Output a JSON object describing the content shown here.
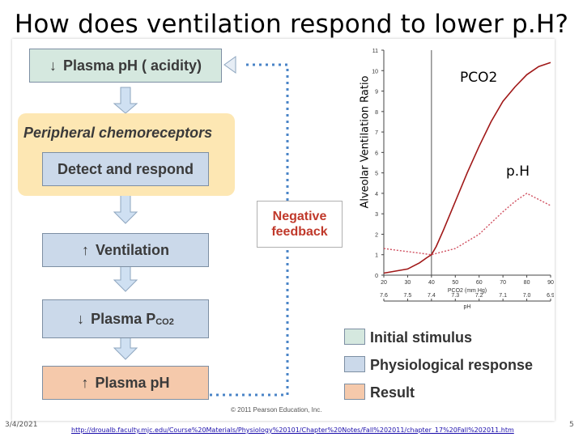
{
  "title": "How does ventilation respond to lower p.H?",
  "flow": {
    "stimulus": "Plasma pH ( acidity)",
    "chemoreceptors": "Peripheral chemoreceptors",
    "detect": "Detect and respond",
    "ventilation": "Ventilation",
    "pco2": "Plasma P",
    "pco2_sub": "CO2",
    "result": "Plasma pH",
    "negative_feedback": "Negative feedback"
  },
  "legend": [
    {
      "label": "Initial stimulus",
      "color": "#d5e8df"
    },
    {
      "label": "Physiological response",
      "color": "#cbd9ea"
    },
    {
      "label": "Result",
      "color": "#f5c9ab"
    }
  ],
  "copyright": "© 2011 Pearson Education, Inc.",
  "graph": {
    "ylabel": "Alveolar Ventilation Ratio",
    "pco2_label": "PCO2",
    "ph_label": "p.H",
    "x_title": "PCO2 (mm Hg)",
    "ph_axis_title": "pH",
    "chart_data": {
      "type": "line",
      "xlabel": "PCO2 (mm Hg)",
      "ylabel": "Alveolar Ventilation Ratio",
      "x_ticks": [
        "20",
        "30",
        "40",
        "50",
        "60",
        "70",
        "80",
        "90"
      ],
      "ph_ticks": [
        "7.6",
        "7.5",
        "7.4",
        "7.3",
        "7.2",
        "7.1",
        "7.0",
        "6.9"
      ],
      "y_ticks": [
        "0",
        "1",
        "2",
        "3",
        "4",
        "5",
        "6",
        "7",
        "8",
        "9",
        "10",
        "11"
      ],
      "ylim": [
        0,
        11
      ],
      "xlim": [
        20,
        90
      ],
      "series": [
        {
          "name": "PCO2",
          "x": [
            20,
            30,
            35,
            38,
            40,
            42,
            45,
            50,
            55,
            60,
            65,
            70,
            75,
            80,
            85,
            90
          ],
          "y": [
            0.1,
            0.3,
            0.6,
            0.85,
            1.0,
            1.4,
            2.2,
            3.6,
            5.0,
            6.3,
            7.5,
            8.5,
            9.2,
            9.8,
            10.2,
            10.4
          ]
        },
        {
          "name": "p.H",
          "x": [
            20,
            30,
            40,
            50,
            60,
            70,
            75,
            80,
            85,
            90
          ],
          "y": [
            1.3,
            1.15,
            1.0,
            1.3,
            2.0,
            3.1,
            3.6,
            4.0,
            3.7,
            3.4
          ]
        }
      ]
    }
  },
  "footer": {
    "date": "3/4/2021",
    "url": "http://droualb.faculty.mjc.edu/Course%20Materials/Physiology%20101/Chapter%20Notes/Fall%202011/chapter_17%20Fall%202011.htm",
    "page": "5"
  }
}
